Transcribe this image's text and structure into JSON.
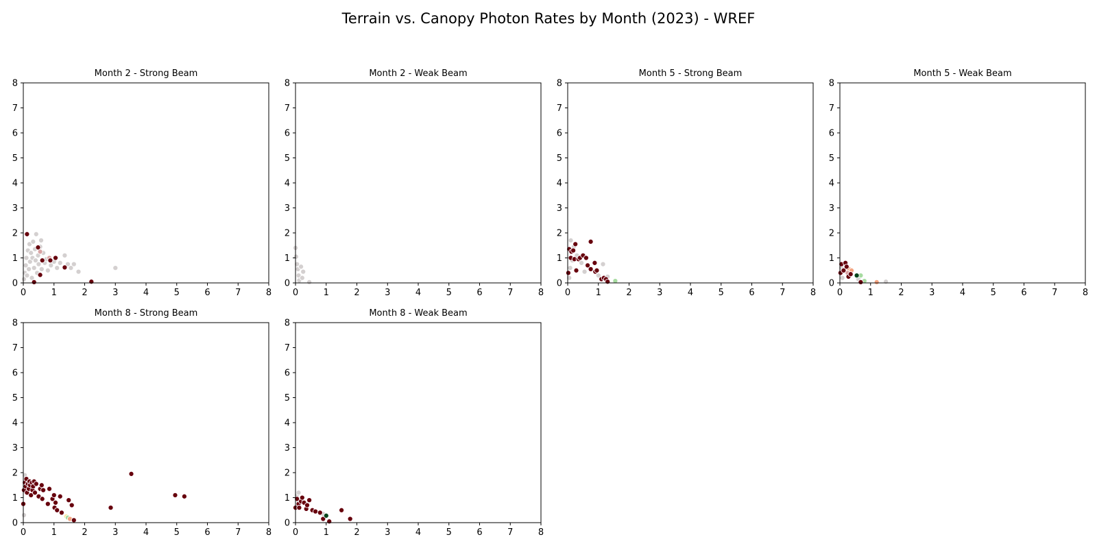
{
  "figure": {
    "title": "Terrain vs. Canopy Photon Rates by Month (2023) - WREF"
  },
  "colors": {
    "dark_red": "#67000d",
    "light_gray": "#d4d0d0",
    "light_pink": "#d9a3a3",
    "light_green": "#a6dba0",
    "dark_green": "#00441b",
    "salmon": "#f4a582",
    "pale_yellow": "#ffe8a0"
  },
  "chart_data": [
    {
      "type": "scatter",
      "title": "Month 2 - Strong Beam",
      "xlim": [
        0,
        8
      ],
      "ylim": [
        0,
        8
      ],
      "xticks": [
        "0",
        "1",
        "2",
        "3",
        "4",
        "5",
        "6",
        "7",
        "8"
      ],
      "yticks": [
        "0",
        "1",
        "2",
        "3",
        "4",
        "5",
        "6",
        "7",
        "8"
      ],
      "points": [
        {
          "x": 0.02,
          "y": 0.15,
          "c": "light_gray"
        },
        {
          "x": 0.05,
          "y": 0.4,
          "c": "light_gray"
        },
        {
          "x": 0.08,
          "y": 0.7,
          "c": "light_gray"
        },
        {
          "x": 0.1,
          "y": 1.0,
          "c": "light_gray"
        },
        {
          "x": 0.12,
          "y": 0.3,
          "c": "light_gray"
        },
        {
          "x": 0.15,
          "y": 1.3,
          "c": "light_gray"
        },
        {
          "x": 0.18,
          "y": 0.55,
          "c": "light_gray"
        },
        {
          "x": 0.2,
          "y": 1.55,
          "c": "light_gray"
        },
        {
          "x": 0.22,
          "y": 0.85,
          "c": "light_gray"
        },
        {
          "x": 0.25,
          "y": 1.2,
          "c": "light_gray"
        },
        {
          "x": 0.28,
          "y": 0.2,
          "c": "light_gray"
        },
        {
          "x": 0.3,
          "y": 1.0,
          "c": "light_gray"
        },
        {
          "x": 0.32,
          "y": 1.65,
          "c": "light_gray"
        },
        {
          "x": 0.35,
          "y": 0.6,
          "c": "light_gray"
        },
        {
          "x": 0.38,
          "y": 1.35,
          "c": "light_gray"
        },
        {
          "x": 0.4,
          "y": 0.9,
          "c": "light_gray"
        },
        {
          "x": 0.42,
          "y": 1.95,
          "c": "light_gray"
        },
        {
          "x": 0.45,
          "y": 0.4,
          "c": "light_gray"
        },
        {
          "x": 0.48,
          "y": 1.1,
          "c": "light_gray"
        },
        {
          "x": 0.5,
          "y": 0.75,
          "c": "light_gray"
        },
        {
          "x": 0.55,
          "y": 1.45,
          "c": "light_gray"
        },
        {
          "x": 0.58,
          "y": 1.7,
          "c": "light_gray"
        },
        {
          "x": 0.6,
          "y": 0.55,
          "c": "light_gray"
        },
        {
          "x": 0.65,
          "y": 1.2,
          "c": "light_gray"
        },
        {
          "x": 0.7,
          "y": 0.8,
          "c": "light_gray"
        },
        {
          "x": 0.75,
          "y": 0.95,
          "c": "light_gray"
        },
        {
          "x": 0.8,
          "y": 0.5,
          "c": "light_gray"
        },
        {
          "x": 0.9,
          "y": 0.7,
          "c": "light_gray"
        },
        {
          "x": 1.0,
          "y": 0.85,
          "c": "light_gray"
        },
        {
          "x": 1.1,
          "y": 0.6,
          "c": "light_gray"
        },
        {
          "x": 1.2,
          "y": 0.8,
          "c": "light_gray"
        },
        {
          "x": 1.35,
          "y": 1.1,
          "c": "light_gray"
        },
        {
          "x": 1.45,
          "y": 0.75,
          "c": "light_gray"
        },
        {
          "x": 1.55,
          "y": 0.6,
          "c": "light_gray"
        },
        {
          "x": 1.65,
          "y": 0.75,
          "c": "light_gray"
        },
        {
          "x": 1.8,
          "y": 0.45,
          "c": "light_gray"
        },
        {
          "x": 3.0,
          "y": 0.6,
          "c": "light_gray"
        },
        {
          "x": 0.55,
          "y": 1.25,
          "c": "light_pink"
        },
        {
          "x": 0.85,
          "y": 1.0,
          "c": "light_pink"
        },
        {
          "x": 0.12,
          "y": 1.95,
          "c": "dark_red"
        },
        {
          "x": 0.48,
          "y": 1.42,
          "c": "dark_red"
        },
        {
          "x": 0.62,
          "y": 0.9,
          "c": "dark_red"
        },
        {
          "x": 0.88,
          "y": 0.9,
          "c": "dark_red"
        },
        {
          "x": 1.05,
          "y": 1.0,
          "c": "dark_red"
        },
        {
          "x": 0.55,
          "y": 0.32,
          "c": "dark_red"
        },
        {
          "x": 1.35,
          "y": 0.62,
          "c": "dark_red"
        },
        {
          "x": 0.35,
          "y": 0.03,
          "c": "dark_red"
        },
        {
          "x": 2.22,
          "y": 0.05,
          "c": "dark_red"
        }
      ]
    },
    {
      "type": "scatter",
      "title": "Month 2 - Weak Beam",
      "xlim": [
        0,
        8
      ],
      "ylim": [
        0,
        8
      ],
      "xticks": [
        "0",
        "1",
        "2",
        "3",
        "4",
        "5",
        "6",
        "7",
        "8"
      ],
      "yticks": [
        "0",
        "1",
        "2",
        "3",
        "4",
        "5",
        "6",
        "7",
        "8"
      ],
      "points": [
        {
          "x": 0.0,
          "y": 1.4,
          "c": "light_gray"
        },
        {
          "x": 0.02,
          "y": 1.05,
          "c": "light_gray"
        },
        {
          "x": 0.05,
          "y": 0.75,
          "c": "light_gray"
        },
        {
          "x": 0.08,
          "y": 0.55,
          "c": "light_gray"
        },
        {
          "x": 0.1,
          "y": 0.3,
          "c": "light_gray"
        },
        {
          "x": 0.12,
          "y": 0.1,
          "c": "light_gray"
        },
        {
          "x": 0.18,
          "y": 0.65,
          "c": "light_gray"
        },
        {
          "x": 0.22,
          "y": 0.2,
          "c": "light_gray"
        },
        {
          "x": 0.25,
          "y": 0.45,
          "c": "light_gray"
        },
        {
          "x": 0.45,
          "y": 0.03,
          "c": "light_gray"
        }
      ]
    },
    {
      "type": "scatter",
      "title": "Month 5 - Strong Beam",
      "xlim": [
        0,
        8
      ],
      "ylim": [
        0,
        8
      ],
      "xticks": [
        "0",
        "1",
        "2",
        "3",
        "4",
        "5",
        "6",
        "7",
        "8"
      ],
      "yticks": [
        "0",
        "1",
        "2",
        "3",
        "4",
        "5",
        "6",
        "7",
        "8"
      ],
      "points": [
        {
          "x": 0.05,
          "y": 0.2,
          "c": "light_gray"
        },
        {
          "x": 0.08,
          "y": 0.6,
          "c": "light_gray"
        },
        {
          "x": 0.1,
          "y": 1.7,
          "c": "light_gray"
        },
        {
          "x": 0.15,
          "y": 0.9,
          "c": "light_gray"
        },
        {
          "x": 0.2,
          "y": 1.45,
          "c": "light_gray"
        },
        {
          "x": 0.3,
          "y": 1.1,
          "c": "light_gray"
        },
        {
          "x": 0.45,
          "y": 0.8,
          "c": "light_gray"
        },
        {
          "x": 0.55,
          "y": 0.45,
          "c": "light_gray"
        },
        {
          "x": 1.0,
          "y": 0.3,
          "c": "light_gray"
        },
        {
          "x": 1.15,
          "y": 0.75,
          "c": "light_gray"
        },
        {
          "x": 1.3,
          "y": 0.25,
          "c": "light_gray"
        },
        {
          "x": 1.55,
          "y": 0.08,
          "c": "light_green"
        },
        {
          "x": 0.02,
          "y": 0.4,
          "c": "dark_red"
        },
        {
          "x": 0.05,
          "y": 1.35,
          "c": "dark_red"
        },
        {
          "x": 0.1,
          "y": 1.0,
          "c": "dark_red"
        },
        {
          "x": 0.12,
          "y": 1.25,
          "c": "dark_red"
        },
        {
          "x": 0.18,
          "y": 1.3,
          "c": "dark_red"
        },
        {
          "x": 0.22,
          "y": 0.95,
          "c": "dark_red"
        },
        {
          "x": 0.25,
          "y": 1.55,
          "c": "dark_red"
        },
        {
          "x": 0.28,
          "y": 0.5,
          "c": "dark_red"
        },
        {
          "x": 0.35,
          "y": 0.95,
          "c": "dark_red"
        },
        {
          "x": 0.4,
          "y": 1.0,
          "c": "dark_red"
        },
        {
          "x": 0.5,
          "y": 1.1,
          "c": "dark_red"
        },
        {
          "x": 0.6,
          "y": 1.0,
          "c": "dark_red"
        },
        {
          "x": 0.65,
          "y": 0.7,
          "c": "dark_red"
        },
        {
          "x": 0.75,
          "y": 0.55,
          "c": "dark_red"
        },
        {
          "x": 0.75,
          "y": 1.65,
          "c": "dark_red"
        },
        {
          "x": 0.88,
          "y": 0.8,
          "c": "dark_red"
        },
        {
          "x": 0.9,
          "y": 0.45,
          "c": "dark_red"
        },
        {
          "x": 0.95,
          "y": 0.5,
          "c": "dark_red"
        },
        {
          "x": 1.1,
          "y": 0.15,
          "c": "dark_red"
        },
        {
          "x": 1.18,
          "y": 0.2,
          "c": "dark_red"
        },
        {
          "x": 1.25,
          "y": 0.15,
          "c": "dark_red"
        },
        {
          "x": 1.3,
          "y": 0.05,
          "c": "dark_red"
        }
      ]
    },
    {
      "type": "scatter",
      "title": "Month 5 - Weak Beam",
      "xlim": [
        0,
        8
      ],
      "ylim": [
        0,
        8
      ],
      "xticks": [
        "0",
        "1",
        "2",
        "3",
        "4",
        "5",
        "6",
        "7",
        "8"
      ],
      "yticks": [
        "0",
        "1",
        "2",
        "3",
        "4",
        "5",
        "6",
        "7",
        "8"
      ],
      "points": [
        {
          "x": 0.05,
          "y": 0.6,
          "c": "light_gray"
        },
        {
          "x": 0.08,
          "y": 0.2,
          "c": "light_gray"
        },
        {
          "x": 0.1,
          "y": 0.45,
          "c": "light_gray"
        },
        {
          "x": 1.5,
          "y": 0.05,
          "c": "light_gray"
        },
        {
          "x": 0.6,
          "y": 0.15,
          "c": "light_gray"
        },
        {
          "x": 0.3,
          "y": 0.55,
          "c": "salmon"
        },
        {
          "x": 0.38,
          "y": 0.5,
          "c": "salmon"
        },
        {
          "x": 1.2,
          "y": 0.03,
          "c": "salmon"
        },
        {
          "x": 0.25,
          "y": 0.4,
          "c": "light_pink"
        },
        {
          "x": 0.68,
          "y": 0.3,
          "c": "light_green"
        },
        {
          "x": 0.8,
          "y": 0.08,
          "c": "light_green"
        },
        {
          "x": 0.55,
          "y": 0.3,
          "c": "dark_green"
        },
        {
          "x": 0.02,
          "y": 0.4,
          "c": "dark_red"
        },
        {
          "x": 0.05,
          "y": 0.75,
          "c": "dark_red"
        },
        {
          "x": 0.12,
          "y": 0.5,
          "c": "dark_red"
        },
        {
          "x": 0.18,
          "y": 0.8,
          "c": "dark_red"
        },
        {
          "x": 0.22,
          "y": 0.65,
          "c": "dark_red"
        },
        {
          "x": 0.28,
          "y": 0.25,
          "c": "dark_red"
        },
        {
          "x": 0.35,
          "y": 0.35,
          "c": "dark_red"
        },
        {
          "x": 0.68,
          "y": 0.03,
          "c": "dark_red"
        }
      ]
    },
    {
      "type": "scatter",
      "title": "Month 8 - Strong Beam",
      "xlim": [
        0,
        8
      ],
      "ylim": [
        0,
        8
      ],
      "xticks": [
        "0",
        "1",
        "2",
        "3",
        "4",
        "5",
        "6",
        "7",
        "8"
      ],
      "yticks": [
        "0",
        "1",
        "2",
        "3",
        "4",
        "5",
        "6",
        "7",
        "8"
      ],
      "points": [
        {
          "x": 0.02,
          "y": 0.3,
          "c": "light_gray"
        },
        {
          "x": 0.05,
          "y": 1.9,
          "c": "light_gray"
        },
        {
          "x": 1.4,
          "y": 0.25,
          "c": "pale_yellow"
        },
        {
          "x": 1.45,
          "y": 0.2,
          "c": "light_green"
        },
        {
          "x": 1.52,
          "y": 0.15,
          "c": "salmon"
        },
        {
          "x": 0.0,
          "y": 0.75,
          "c": "dark_red"
        },
        {
          "x": 0.02,
          "y": 1.3,
          "c": "dark_red"
        },
        {
          "x": 0.05,
          "y": 1.6,
          "c": "dark_red"
        },
        {
          "x": 0.08,
          "y": 1.45,
          "c": "dark_red"
        },
        {
          "x": 0.1,
          "y": 1.75,
          "c": "dark_red"
        },
        {
          "x": 0.12,
          "y": 1.2,
          "c": "dark_red"
        },
        {
          "x": 0.15,
          "y": 1.55,
          "c": "dark_red"
        },
        {
          "x": 0.18,
          "y": 1.35,
          "c": "dark_red"
        },
        {
          "x": 0.2,
          "y": 1.65,
          "c": "dark_red"
        },
        {
          "x": 0.22,
          "y": 1.5,
          "c": "dark_red"
        },
        {
          "x": 0.25,
          "y": 1.1,
          "c": "dark_red"
        },
        {
          "x": 0.28,
          "y": 1.6,
          "c": "dark_red"
        },
        {
          "x": 0.3,
          "y": 1.3,
          "c": "dark_red"
        },
        {
          "x": 0.32,
          "y": 1.45,
          "c": "dark_red"
        },
        {
          "x": 0.35,
          "y": 1.65,
          "c": "dark_red"
        },
        {
          "x": 0.38,
          "y": 1.2,
          "c": "dark_red"
        },
        {
          "x": 0.42,
          "y": 1.55,
          "c": "dark_red"
        },
        {
          "x": 0.5,
          "y": 1.05,
          "c": "dark_red"
        },
        {
          "x": 0.55,
          "y": 1.35,
          "c": "dark_red"
        },
        {
          "x": 0.6,
          "y": 1.5,
          "c": "dark_red"
        },
        {
          "x": 0.62,
          "y": 0.95,
          "c": "dark_red"
        },
        {
          "x": 0.65,
          "y": 1.3,
          "c": "dark_red"
        },
        {
          "x": 0.8,
          "y": 0.75,
          "c": "dark_red"
        },
        {
          "x": 0.85,
          "y": 1.35,
          "c": "dark_red"
        },
        {
          "x": 0.95,
          "y": 0.95,
          "c": "dark_red"
        },
        {
          "x": 1.0,
          "y": 1.1,
          "c": "dark_red"
        },
        {
          "x": 1.02,
          "y": 0.6,
          "c": "dark_red"
        },
        {
          "x": 1.05,
          "y": 0.8,
          "c": "dark_red"
        },
        {
          "x": 1.1,
          "y": 0.5,
          "c": "dark_red"
        },
        {
          "x": 1.2,
          "y": 1.05,
          "c": "dark_red"
        },
        {
          "x": 1.25,
          "y": 0.4,
          "c": "dark_red"
        },
        {
          "x": 1.48,
          "y": 0.9,
          "c": "dark_red"
        },
        {
          "x": 1.58,
          "y": 0.7,
          "c": "dark_red"
        },
        {
          "x": 1.65,
          "y": 0.1,
          "c": "dark_red"
        },
        {
          "x": 2.85,
          "y": 0.6,
          "c": "dark_red"
        },
        {
          "x": 3.52,
          "y": 1.95,
          "c": "dark_red"
        },
        {
          "x": 4.95,
          "y": 1.1,
          "c": "dark_red"
        },
        {
          "x": 5.25,
          "y": 1.05,
          "c": "dark_red"
        }
      ]
    },
    {
      "type": "scatter",
      "title": "Month 8 - Weak Beam",
      "xlim": [
        0,
        8
      ],
      "ylim": [
        0,
        8
      ],
      "xticks": [
        "0",
        "1",
        "2",
        "3",
        "4",
        "5",
        "6",
        "7",
        "8"
      ],
      "yticks": [
        "0",
        "1",
        "2",
        "3",
        "4",
        "5",
        "6",
        "7",
        "8"
      ],
      "points": [
        {
          "x": 0.05,
          "y": 1.1,
          "c": "light_gray"
        },
        {
          "x": 0.1,
          "y": 1.2,
          "c": "light_gray"
        },
        {
          "x": 0.9,
          "y": 0.35,
          "c": "light_gray"
        },
        {
          "x": 0.0,
          "y": 0.6,
          "c": "dark_red"
        },
        {
          "x": 0.05,
          "y": 0.95,
          "c": "dark_red"
        },
        {
          "x": 0.1,
          "y": 0.75,
          "c": "dark_red"
        },
        {
          "x": 0.12,
          "y": 0.6,
          "c": "dark_red"
        },
        {
          "x": 0.18,
          "y": 0.85,
          "c": "dark_red"
        },
        {
          "x": 0.22,
          "y": 1.0,
          "c": "dark_red"
        },
        {
          "x": 0.28,
          "y": 0.8,
          "c": "dark_red"
        },
        {
          "x": 0.35,
          "y": 0.55,
          "c": "dark_red"
        },
        {
          "x": 0.38,
          "y": 0.7,
          "c": "dark_red"
        },
        {
          "x": 0.45,
          "y": 0.9,
          "c": "dark_red"
        },
        {
          "x": 0.55,
          "y": 0.5,
          "c": "dark_red"
        },
        {
          "x": 0.65,
          "y": 0.45,
          "c": "dark_red"
        },
        {
          "x": 0.8,
          "y": 0.4,
          "c": "dark_red"
        },
        {
          "x": 0.9,
          "y": 0.15,
          "c": "dark_red"
        },
        {
          "x": 1.1,
          "y": 0.05,
          "c": "dark_red"
        },
        {
          "x": 1.5,
          "y": 0.5,
          "c": "dark_red"
        },
        {
          "x": 1.78,
          "y": 0.15,
          "c": "dark_red"
        },
        {
          "x": 1.0,
          "y": 0.28,
          "c": "dark_green"
        }
      ]
    }
  ]
}
